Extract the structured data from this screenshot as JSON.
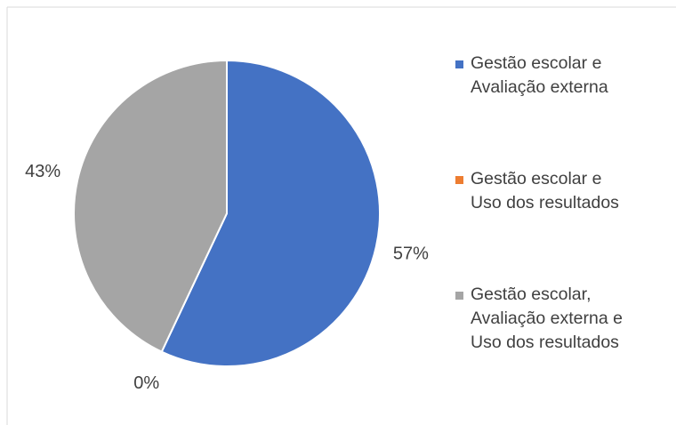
{
  "chart_data": {
    "type": "pie",
    "categories": [
      "Gestão escolar e Avaliação externa",
      "Gestão escolar e Uso dos resultados",
      "Gestão escolar, Avaliação externa e Uso dos resultados"
    ],
    "values": [
      57,
      0,
      43
    ],
    "value_labels": [
      "57%",
      "0%",
      "43%"
    ],
    "colors": [
      "#4472c4",
      "#ed7d31",
      "#a5a5a5"
    ],
    "legend": "right"
  }
}
